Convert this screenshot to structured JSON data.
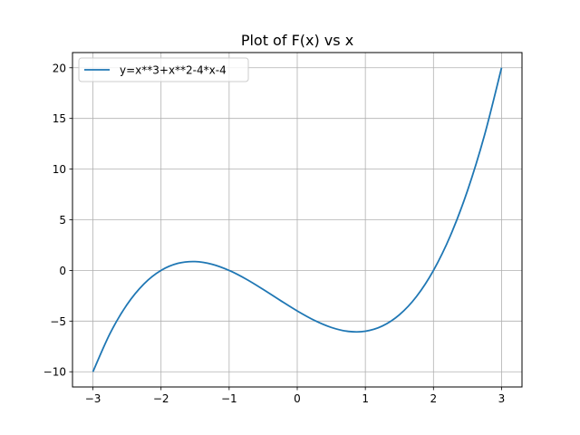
{
  "chart_data": {
    "type": "line",
    "title": "Plot of F(x) vs x",
    "xlabel": "",
    "ylabel": "",
    "xlim": [
      -3.3,
      3.3
    ],
    "ylim": [
      -11.5,
      21.5
    ],
    "xticks": [
      -3,
      -2,
      -1,
      0,
      1,
      2,
      3
    ],
    "xtick_labels": [
      "−3",
      "−2",
      "−1",
      "0",
      "1",
      "2",
      "3"
    ],
    "yticks": [
      -10,
      -5,
      0,
      5,
      10,
      15,
      20
    ],
    "ytick_labels": [
      "−10",
      "−5",
      "0",
      "5",
      "10",
      "15",
      "20"
    ],
    "grid": true,
    "legend_position": "upper-left",
    "series": [
      {
        "name": "y=x**3+x**2-4*x-4",
        "color": "#1f77b4",
        "x": [
          -3.0,
          -2.75,
          -2.5,
          -2.25,
          -2.0,
          -1.75,
          -1.5,
          -1.25,
          -1.0,
          -0.75,
          -0.5,
          -0.25,
          0.0,
          0.25,
          0.5,
          0.75,
          1.0,
          1.25,
          1.5,
          1.75,
          2.0,
          2.25,
          2.5,
          2.75,
          3.0
        ],
        "y": [
          -10.0,
          -6.234,
          -3.375,
          -1.328,
          0.0,
          0.703,
          0.875,
          0.609,
          0.0,
          -0.859,
          -1.875,
          -2.953,
          -4.0,
          -4.922,
          -5.625,
          -6.016,
          -6.0,
          -5.484,
          -4.375,
          -2.578,
          0.0,
          3.453,
          7.875,
          13.359,
          20.0
        ]
      }
    ]
  }
}
